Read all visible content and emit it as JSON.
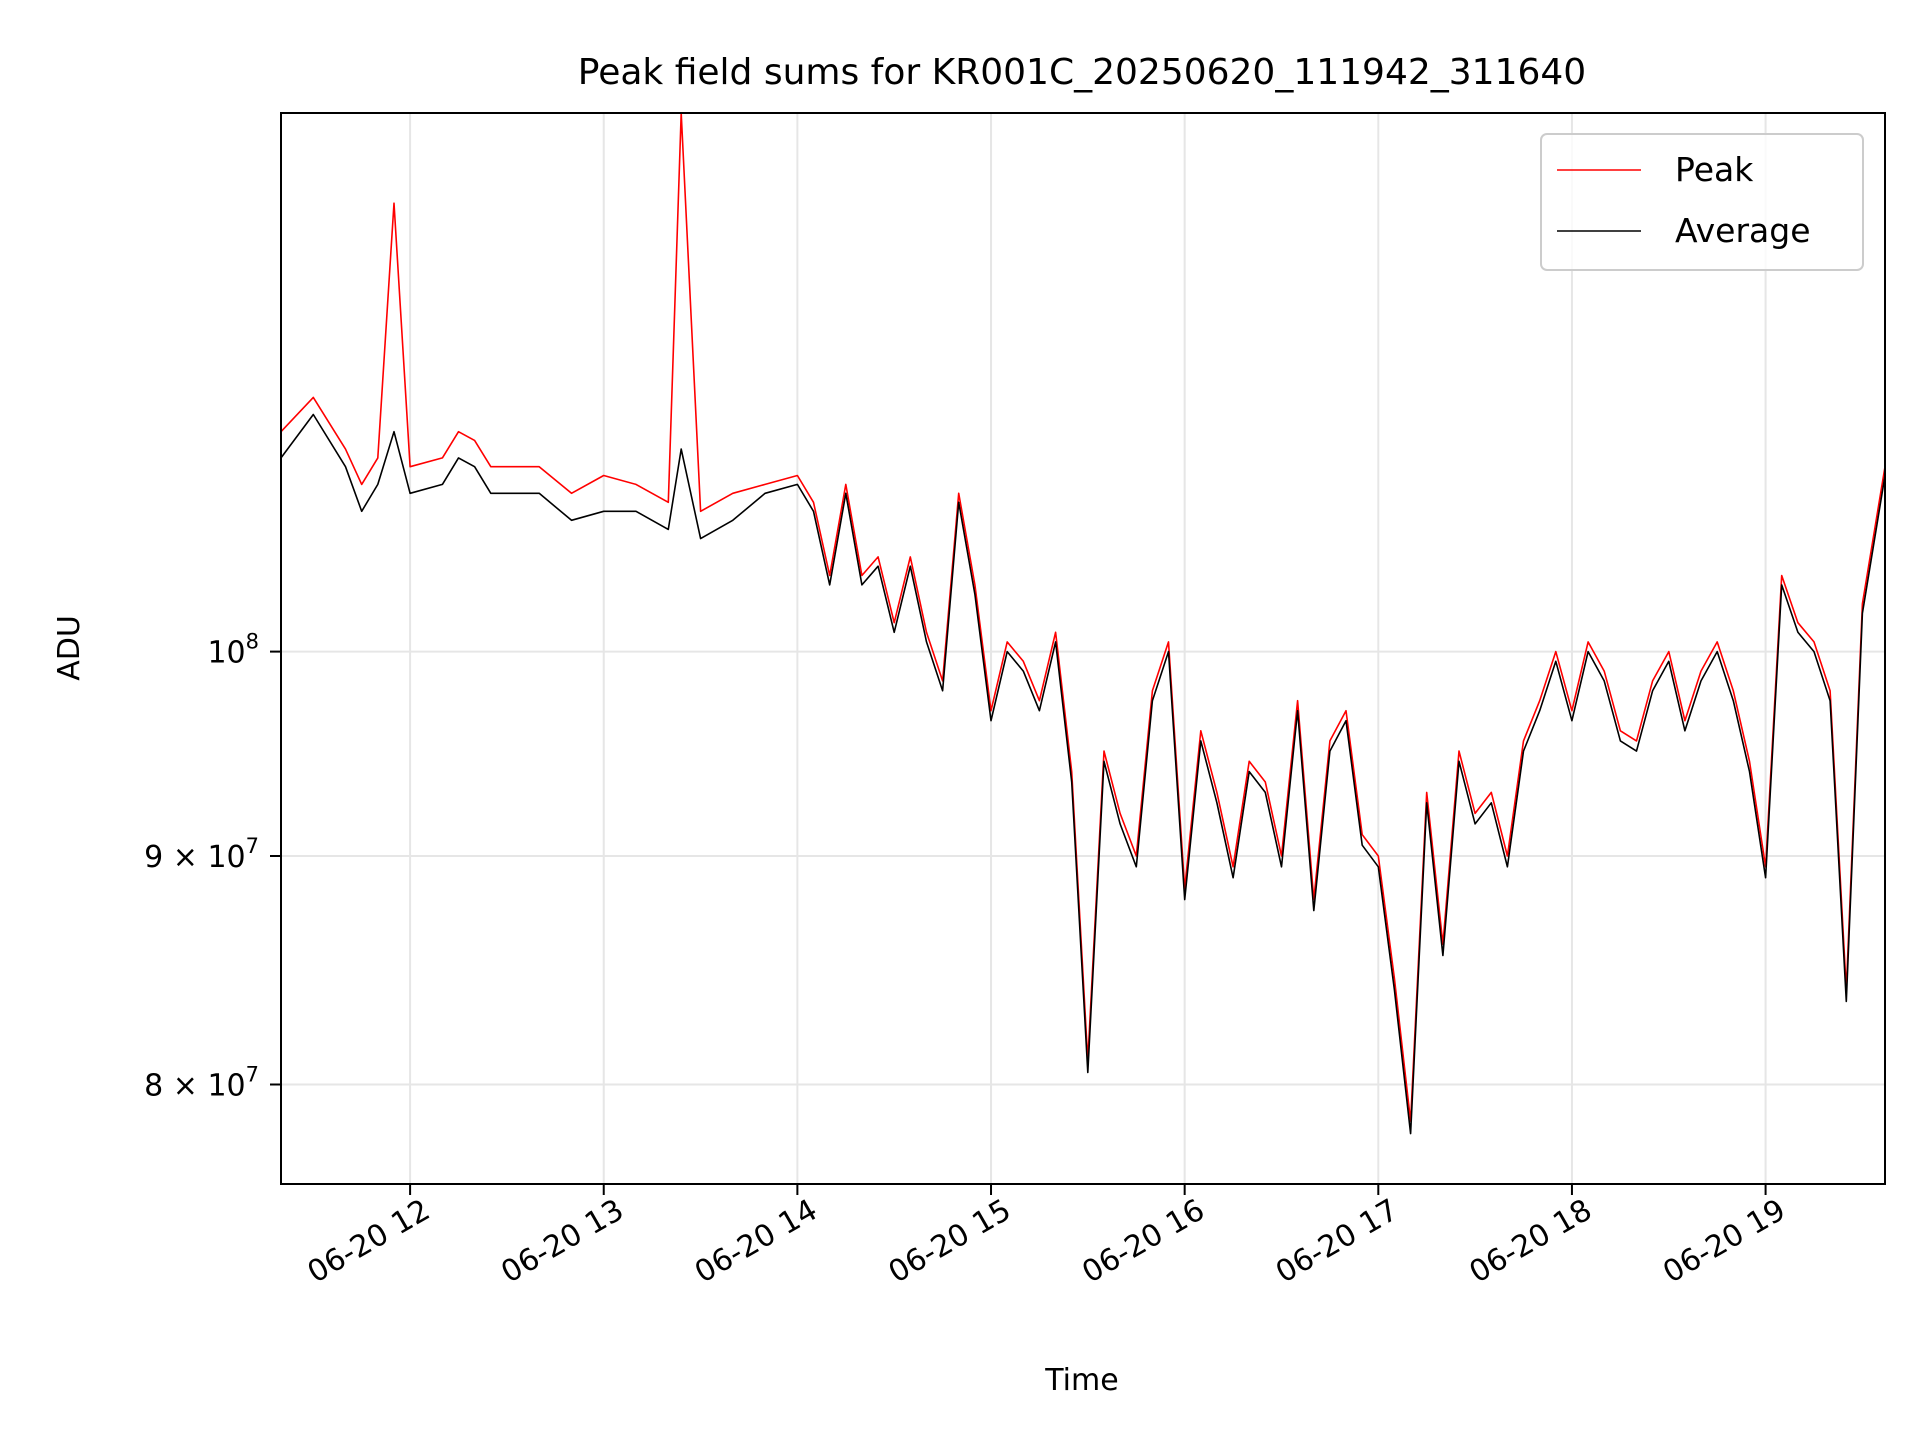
{
  "chart_data": {
    "type": "line",
    "title": "Peak field sums for KR001C_20250620_111942_311640",
    "xlabel": "Time",
    "ylabel": "ADU",
    "y_scale": "log",
    "x_range": [
      "2025-06-20 11:20",
      "2025-06-20 19:37"
    ],
    "ylim": [
      76000000,
      132000000
    ],
    "grid": true,
    "legend_position": "upper right",
    "x_ticks": [
      "06-20 12",
      "06-20 13",
      "06-20 14",
      "06-20 15",
      "06-20 16",
      "06-20 17",
      "06-20 18",
      "06-20 19"
    ],
    "y_ticks": [
      {
        "value": 100000000,
        "base": "10",
        "exp": "8",
        "mant": ""
      },
      {
        "value": 90000000,
        "base": "10",
        "exp": "7",
        "mant": "9"
      },
      {
        "value": 80000000,
        "base": "10",
        "exp": "7",
        "mant": "8"
      }
    ],
    "x": [
      "11:20",
      "11:30",
      "11:40",
      "11:45",
      "11:50",
      "11:55",
      "12:00",
      "12:10",
      "12:15",
      "12:20",
      "12:25",
      "12:30",
      "12:40",
      "12:50",
      "13:00",
      "13:10",
      "13:20",
      "13:24",
      "13:30",
      "13:40",
      "13:50",
      "14:00",
      "14:05",
      "14:10",
      "14:15",
      "14:20",
      "14:25",
      "14:30",
      "14:35",
      "14:40",
      "14:45",
      "14:50",
      "14:55",
      "15:00",
      "15:05",
      "15:10",
      "15:15",
      "15:20",
      "15:25",
      "15:30",
      "15:35",
      "15:40",
      "15:45",
      "15:50",
      "15:55",
      "16:00",
      "16:05",
      "16:10",
      "16:15",
      "16:20",
      "16:25",
      "16:30",
      "16:35",
      "16:40",
      "16:45",
      "16:50",
      "16:55",
      "17:00",
      "17:05",
      "17:10",
      "17:15",
      "17:20",
      "17:25",
      "17:30",
      "17:35",
      "17:40",
      "17:45",
      "17:50",
      "17:55",
      "18:00",
      "18:05",
      "18:10",
      "18:15",
      "18:20",
      "18:25",
      "18:30",
      "18:35",
      "18:40",
      "18:45",
      "18:50",
      "18:55",
      "19:00",
      "19:05",
      "19:10",
      "19:15",
      "19:20",
      "19:25",
      "19:30",
      "19:37"
    ],
    "series": [
      {
        "name": "Peak",
        "color": "#ff0000",
        "values": [
          112000000,
          114000000,
          111000000,
          109000000,
          110500000,
          126000000,
          110000000,
          110500000,
          112000000,
          111500000,
          110000000,
          110000000,
          110000000,
          108500000,
          109500000,
          109000000,
          108000000,
          132000000,
          107500000,
          108500000,
          109000000,
          109500000,
          108000000,
          104000000,
          109000000,
          104000000,
          105000000,
          101500000,
          105000000,
          101000000,
          98500000,
          108500000,
          103500000,
          97000000,
          100500000,
          99500000,
          97500000,
          101000000,
          94000000,
          81000000,
          95000000,
          92000000,
          90000000,
          98000000,
          100500000,
          88500000,
          96000000,
          93000000,
          89500000,
          94500000,
          93500000,
          90000000,
          97500000,
          88000000,
          95500000,
          97000000,
          91000000,
          90000000,
          84500000,
          78500000,
          93000000,
          86000000,
          95000000,
          92000000,
          93000000,
          90000000,
          95500000,
          97500000,
          100000000,
          97000000,
          100500000,
          99000000,
          96000000,
          95500000,
          98500000,
          100000000,
          96500000,
          99000000,
          100500000,
          98000000,
          94500000,
          89500000,
          104000000,
          101500000,
          100500000,
          98000000,
          84000000,
          102500000,
          110000000
        ]
      },
      {
        "name": "Average",
        "color": "#000000",
        "values": [
          110500000,
          113000000,
          110000000,
          107500000,
          109000000,
          112000000,
          108500000,
          109000000,
          110500000,
          110000000,
          108500000,
          108500000,
          108500000,
          107000000,
          107500000,
          107500000,
          106500000,
          111000000,
          106000000,
          107000000,
          108500000,
          109000000,
          107500000,
          103500000,
          108500000,
          103500000,
          104500000,
          101000000,
          104500000,
          100500000,
          98000000,
          108000000,
          103000000,
          96500000,
          100000000,
          99000000,
          97000000,
          100500000,
          93500000,
          80500000,
          94500000,
          91500000,
          89500000,
          97500000,
          100000000,
          88000000,
          95500000,
          92500000,
          89000000,
          94000000,
          93000000,
          89500000,
          97000000,
          87500000,
          95000000,
          96500000,
          90500000,
          89500000,
          84000000,
          78000000,
          92500000,
          85500000,
          94500000,
          91500000,
          92500000,
          89500000,
          95000000,
          97000000,
          99500000,
          96500000,
          100000000,
          98500000,
          95500000,
          95000000,
          98000000,
          99500000,
          96000000,
          98500000,
          100000000,
          97500000,
          94000000,
          89000000,
          103500000,
          101000000,
          100000000,
          97500000,
          83500000,
          102000000,
          109500000
        ]
      }
    ]
  }
}
